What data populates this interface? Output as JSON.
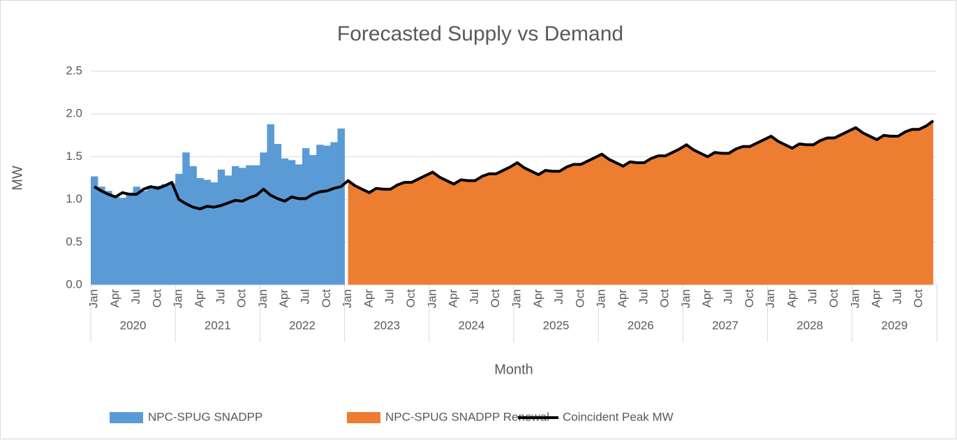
{
  "chart_data": {
    "type": "combo",
    "title": "Forecasted Supply vs Demand",
    "x_label": "Month",
    "y_label": "MW",
    "categories": [
      "Jan",
      null,
      null,
      "Apr",
      null,
      null,
      "Jul",
      null,
      null,
      "Oct",
      null,
      null,
      "Jan",
      null,
      null,
      "Apr",
      null,
      null,
      "Jul",
      null,
      null,
      "Oct",
      null,
      null,
      "Jan",
      null,
      null,
      "Apr",
      null,
      null,
      "Jul",
      null,
      null,
      "Oct",
      null,
      null,
      "Jan",
      null,
      null,
      "Apr",
      null,
      null,
      "Jul",
      null,
      null,
      "Oct",
      null,
      null,
      "Jan",
      null,
      null,
      "Apr",
      null,
      null,
      "Jul",
      null,
      null,
      "Oct",
      null,
      null,
      "Jan",
      null,
      null,
      "Apr",
      null,
      null,
      "Jul",
      null,
      null,
      "Oct",
      null,
      null,
      "Jan",
      null,
      null,
      "Apr",
      null,
      null,
      "Jul",
      null,
      null,
      "Oct",
      null,
      null,
      "Jan",
      null,
      null,
      "Apr",
      null,
      null,
      "Jul",
      null,
      null,
      "Oct",
      null,
      null,
      "Jan",
      null,
      null,
      "Apr",
      null,
      null,
      "Jul",
      null,
      null,
      "Oct",
      null,
      null,
      "Jan",
      null,
      null,
      "Apr",
      null,
      null,
      "Jul",
      null,
      null,
      "Oct",
      null,
      null
    ],
    "year_groups": [
      "2020",
      "2021",
      "2022",
      "2023",
      "2024",
      "2025",
      "2026",
      "2027",
      "2028",
      "2029"
    ],
    "ylim": [
      0,
      2.5
    ],
    "yticks": [
      {
        "value": 0,
        "label": "0.0"
      },
      {
        "value": 0.5,
        "label": "0.5"
      },
      {
        "value": 1,
        "label": "1.0"
      },
      {
        "value": 1.5,
        "label": "1.5"
      },
      {
        "value": 2,
        "label": "2.0"
      },
      {
        "value": 2.5,
        "label": "2.5"
      }
    ],
    "grid": true,
    "legend": "bottom",
    "series": [
      {
        "name": "NPC-SPUG SNADPP",
        "type": "bar",
        "color": "#5b9bd5",
        "values": [
          1.27,
          1.15,
          1.1,
          1.05,
          1.02,
          1.08,
          1.15,
          1.1,
          1.16,
          1.16,
          1.18,
          1.19,
          1.3,
          1.55,
          1.39,
          1.25,
          1.23,
          1.2,
          1.35,
          1.28,
          1.39,
          1.37,
          1.4,
          1.4,
          1.55,
          1.88,
          1.65,
          1.48,
          1.46,
          1.41,
          1.6,
          1.52,
          1.64,
          1.63,
          1.67,
          1.83,
          null,
          null,
          null,
          null,
          null,
          null,
          null,
          null,
          null,
          null,
          null,
          null,
          null,
          null,
          null,
          null,
          null,
          null,
          null,
          null,
          null,
          null,
          null,
          null,
          null,
          null,
          null,
          null,
          null,
          null,
          null,
          null,
          null,
          null,
          null,
          null,
          null,
          null,
          null,
          null,
          null,
          null,
          null,
          null,
          null,
          null,
          null,
          null,
          null,
          null,
          null,
          null,
          null,
          null,
          null,
          null,
          null,
          null,
          null,
          null,
          null,
          null,
          null,
          null,
          null,
          null,
          null,
          null,
          null,
          null,
          null,
          null,
          null,
          null,
          null,
          null,
          null,
          null,
          null,
          null,
          null,
          null,
          null,
          null
        ]
      },
      {
        "name": "NPC-SPUG SNADPP Renewal",
        "type": "area",
        "color": "#ed7d31",
        "values": [
          null,
          null,
          null,
          null,
          null,
          null,
          null,
          null,
          null,
          null,
          null,
          null,
          null,
          null,
          null,
          null,
          null,
          null,
          null,
          null,
          null,
          null,
          null,
          null,
          null,
          null,
          null,
          null,
          null,
          null,
          null,
          null,
          null,
          null,
          null,
          null,
          1.22,
          1.16,
          1.12,
          1.08,
          1.13,
          1.12,
          1.12,
          1.17,
          1.2,
          1.2,
          1.24,
          1.28,
          1.32,
          1.26,
          1.22,
          1.18,
          1.23,
          1.22,
          1.22,
          1.27,
          1.3,
          1.3,
          1.34,
          1.38,
          1.43,
          1.37,
          1.33,
          1.29,
          1.34,
          1.33,
          1.33,
          1.38,
          1.41,
          1.41,
          1.45,
          1.49,
          1.53,
          1.47,
          1.43,
          1.39,
          1.44,
          1.43,
          1.43,
          1.48,
          1.51,
          1.51,
          1.55,
          1.59,
          1.64,
          1.58,
          1.54,
          1.5,
          1.55,
          1.54,
          1.54,
          1.59,
          1.62,
          1.62,
          1.66,
          1.7,
          1.74,
          1.68,
          1.64,
          1.6,
          1.65,
          1.64,
          1.64,
          1.69,
          1.72,
          1.72,
          1.76,
          1.8,
          1.84,
          1.78,
          1.74,
          1.7,
          1.75,
          1.74,
          1.74,
          1.79,
          1.82,
          1.82,
          1.86,
          1.92
        ]
      },
      {
        "name": "Coincident Peak MW",
        "type": "line",
        "color": "#000000",
        "values": [
          1.15,
          1.1,
          1.06,
          1.03,
          1.08,
          1.06,
          1.06,
          1.12,
          1.15,
          1.13,
          1.16,
          1.2,
          1.0,
          0.95,
          0.91,
          0.89,
          0.92,
          0.91,
          0.93,
          0.96,
          0.99,
          0.98,
          1.02,
          1.05,
          1.12,
          1.05,
          1.01,
          0.98,
          1.03,
          1.01,
          1.01,
          1.06,
          1.09,
          1.1,
          1.13,
          1.15,
          1.22,
          1.16,
          1.12,
          1.08,
          1.13,
          1.12,
          1.12,
          1.17,
          1.2,
          1.2,
          1.24,
          1.28,
          1.32,
          1.26,
          1.22,
          1.18,
          1.23,
          1.22,
          1.22,
          1.27,
          1.3,
          1.3,
          1.34,
          1.38,
          1.43,
          1.37,
          1.33,
          1.29,
          1.34,
          1.33,
          1.33,
          1.38,
          1.41,
          1.41,
          1.45,
          1.49,
          1.53,
          1.47,
          1.43,
          1.39,
          1.44,
          1.43,
          1.43,
          1.48,
          1.51,
          1.51,
          1.55,
          1.59,
          1.64,
          1.58,
          1.54,
          1.5,
          1.55,
          1.54,
          1.54,
          1.59,
          1.62,
          1.62,
          1.66,
          1.7,
          1.74,
          1.68,
          1.64,
          1.6,
          1.65,
          1.64,
          1.64,
          1.69,
          1.72,
          1.72,
          1.76,
          1.8,
          1.84,
          1.78,
          1.74,
          1.7,
          1.75,
          1.74,
          1.74,
          1.79,
          1.82,
          1.82,
          1.86,
          1.92
        ]
      }
    ]
  }
}
